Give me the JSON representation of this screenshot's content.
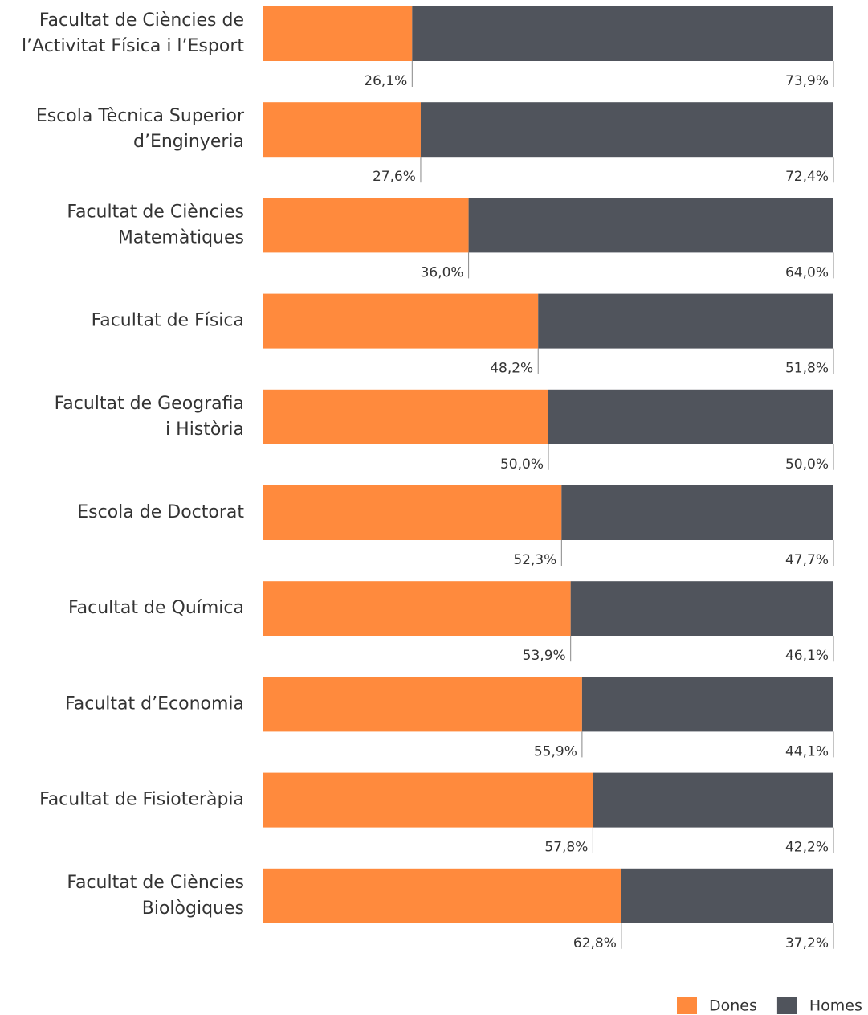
{
  "chart_data": {
    "type": "stacked-bar-100",
    "categories": [
      [
        "Facultat de Ciències de",
        "l’Activitat Física i l’Esport"
      ],
      [
        "Escola Tècnica Superior",
        "d’Enginyeria"
      ],
      [
        "Facultat de Ciències",
        "Matemàtiques"
      ],
      [
        "Facultat de Física"
      ],
      [
        "Facultat de Geografia",
        "i Història"
      ],
      [
        "Escola de Doctorat"
      ],
      [
        "Facultat de Química"
      ],
      [
        "Facultat d’Economia"
      ],
      [
        "Facultat de Fisioteràpia"
      ],
      [
        "Facultat de Ciències",
        "Biològiques"
      ]
    ],
    "series": [
      {
        "name": "Dones",
        "color": "#ff8a3d",
        "values": [
          26.1,
          27.6,
          36.0,
          48.2,
          50.0,
          52.3,
          53.9,
          55.9,
          57.8,
          62.8
        ],
        "value_labels": [
          "26,1%",
          "27,6%",
          "36,0%",
          "48,2%",
          "50,0%",
          "52,3%",
          "53,9%",
          "55,9%",
          "57,8%",
          "62,8%"
        ]
      },
      {
        "name": "Homes",
        "color": "#50545c",
        "values": [
          73.9,
          72.4,
          64.0,
          51.8,
          50.0,
          47.7,
          46.1,
          44.1,
          42.2,
          37.2
        ],
        "value_labels": [
          "73,9%",
          "72,4%",
          "64,0%",
          "51,8%",
          "50,0%",
          "47,7%",
          "46,1%",
          "44,1%",
          "42,2%",
          "37,2%"
        ]
      }
    ]
  }
}
